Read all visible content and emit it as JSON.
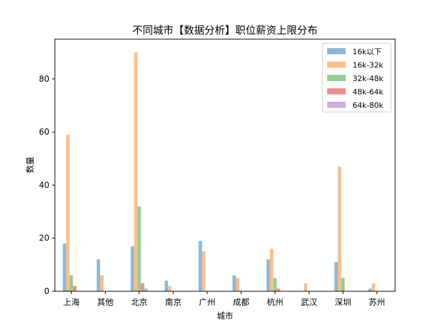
{
  "chart_data": {
    "type": "bar",
    "title": "不同城市【数据分析】职位薪资上限分布",
    "xlabel": "城市",
    "ylabel": "数量",
    "categories": [
      "上海",
      "其他",
      "北京",
      "南京",
      "广州",
      "成都",
      "杭州",
      "武汉",
      "深圳",
      "苏州"
    ],
    "ylim": [
      0,
      95
    ],
    "yticks": [
      0,
      20,
      40,
      60,
      80
    ],
    "legend_position": "top-right",
    "grid": false,
    "series": [
      {
        "name": "16k以下",
        "color": "#8fb8da",
        "values": [
          18,
          12,
          17,
          4,
          19,
          6,
          12,
          0,
          11,
          1
        ]
      },
      {
        "name": "16k-32k",
        "color": "#ffbe86",
        "values": [
          59,
          6,
          90,
          2,
          15,
          5,
          16,
          3,
          47,
          3
        ]
      },
      {
        "name": "32k-48k",
        "color": "#95cf95",
        "values": [
          6,
          0,
          32,
          0,
          0,
          0,
          5,
          0,
          5,
          0
        ]
      },
      {
        "name": "48k-64k",
        "color": "#ea9293",
        "values": [
          2,
          0,
          3,
          0,
          0,
          0,
          1,
          0,
          0,
          0
        ]
      },
      {
        "name": "64k-80k",
        "color": "#c6b1d9",
        "values": [
          0,
          0,
          1,
          0,
          0,
          0,
          0,
          0,
          0,
          0
        ]
      }
    ]
  }
}
